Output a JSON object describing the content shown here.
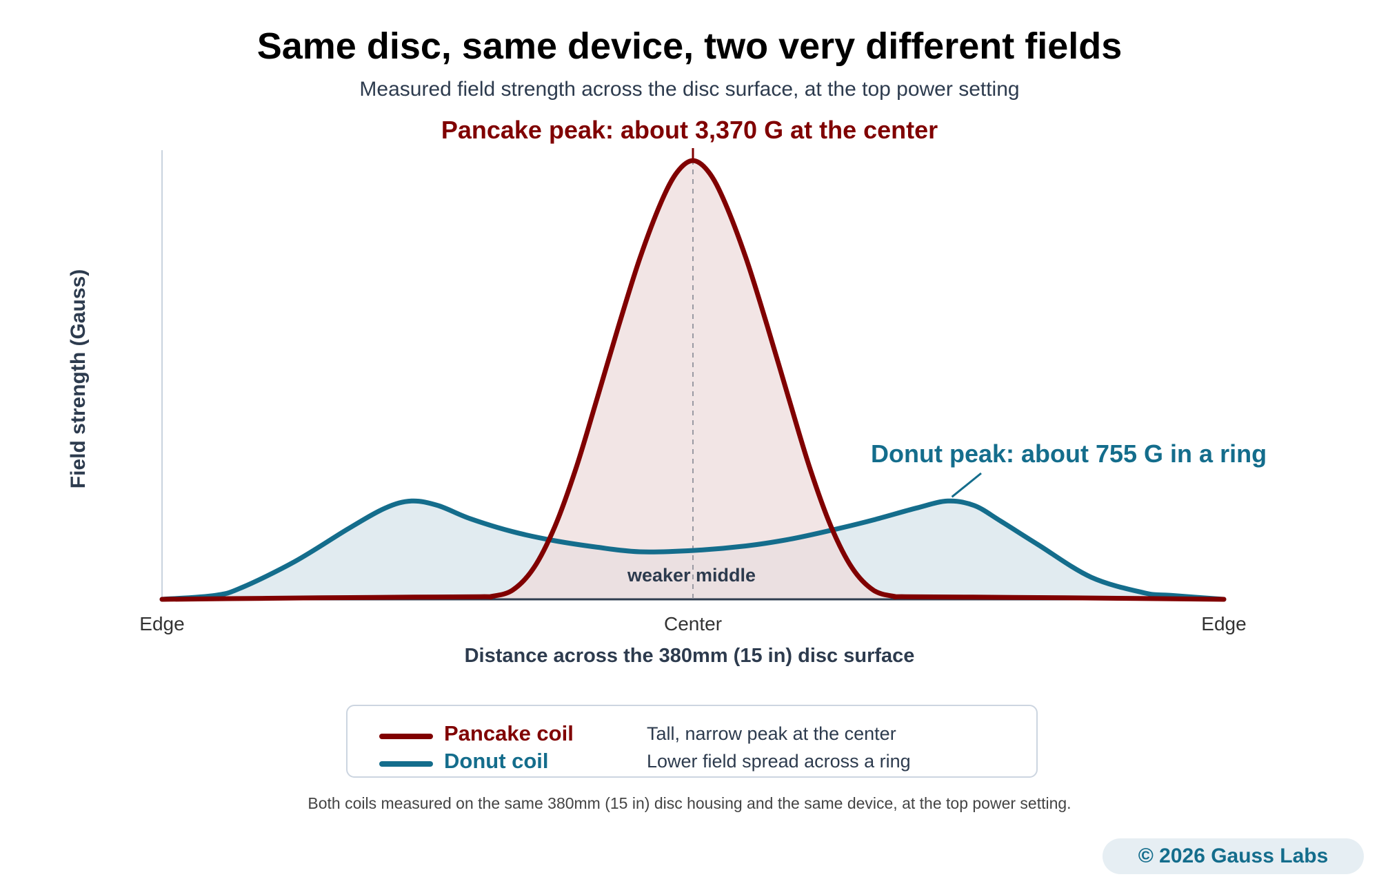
{
  "chart_data": {
    "type": "area",
    "title": "Same disc, same device, two very different fields",
    "subtitle": "Measured field strength across the disc surface, at the top power setting",
    "xlabel": "Distance across the 380mm (15 in) disc surface",
    "ylabel": "Field strength (Gauss)",
    "x_ticks": [
      "Edge",
      "Center",
      "Edge"
    ],
    "xlim": [
      -1,
      1
    ],
    "ylim": [
      0,
      3450
    ],
    "grid": false,
    "legend_position": "bottom",
    "series": [
      {
        "name": "Pancake coil",
        "color": "#800000",
        "fill": "#eddcdc",
        "x": [
          -1.0,
          -0.8,
          -0.6,
          -0.4,
          -0.38,
          -0.34,
          -0.3,
          -0.26,
          -0.22,
          -0.18,
          -0.14,
          -0.1,
          -0.06,
          -0.03,
          0.0,
          0.03,
          0.06,
          0.1,
          0.14,
          0.18,
          0.22,
          0.26,
          0.3,
          0.34,
          0.38,
          0.4,
          0.6,
          0.8,
          1.0
        ],
        "y": [
          0,
          8,
          15,
          20,
          22,
          70,
          240,
          560,
          1010,
          1550,
          2100,
          2620,
          3050,
          3280,
          3370,
          3280,
          3050,
          2620,
          2100,
          1550,
          1010,
          560,
          240,
          70,
          22,
          20,
          15,
          8,
          0
        ]
      },
      {
        "name": "Donut coil",
        "color": "#146d8c",
        "fill": "#e1ebf0",
        "x": [
          -1.0,
          -0.9,
          -0.85,
          -0.75,
          -0.65,
          -0.58,
          -0.53,
          -0.48,
          -0.42,
          -0.34,
          -0.26,
          -0.18,
          -0.1,
          0.0,
          0.1,
          0.18,
          0.26,
          0.34,
          0.42,
          0.48,
          0.53,
          0.58,
          0.65,
          0.75,
          0.85,
          0.9,
          1.0
        ],
        "y": [
          0,
          30,
          90,
          290,
          540,
          700,
          755,
          720,
          620,
          520,
          450,
          400,
          365,
          375,
          410,
          460,
          530,
          610,
          700,
          755,
          720,
          600,
          420,
          170,
          50,
          30,
          0
        ]
      }
    ],
    "annotations": {
      "pancake_peak": "Pancake peak: about 3,370 G at the center",
      "donut_peak": "Donut peak: about 755 G in a ring",
      "middle": "weaker middle"
    },
    "legend": [
      {
        "name": "Pancake coil",
        "description": "Tall, narrow peak at the center",
        "color": "#800000"
      },
      {
        "name": "Donut coil",
        "description": "Lower field spread across a ring",
        "color": "#146d8c"
      }
    ]
  },
  "footnote": "Both coils measured on the same 380mm (15 in) disc housing and the same device, at the top power setting.",
  "copyright": "© 2026 Gauss Labs",
  "colors": {
    "axis": "#2d3b4e",
    "pancake": "#800000",
    "donut": "#146d8c",
    "center_guide": "#9a9aa3"
  }
}
